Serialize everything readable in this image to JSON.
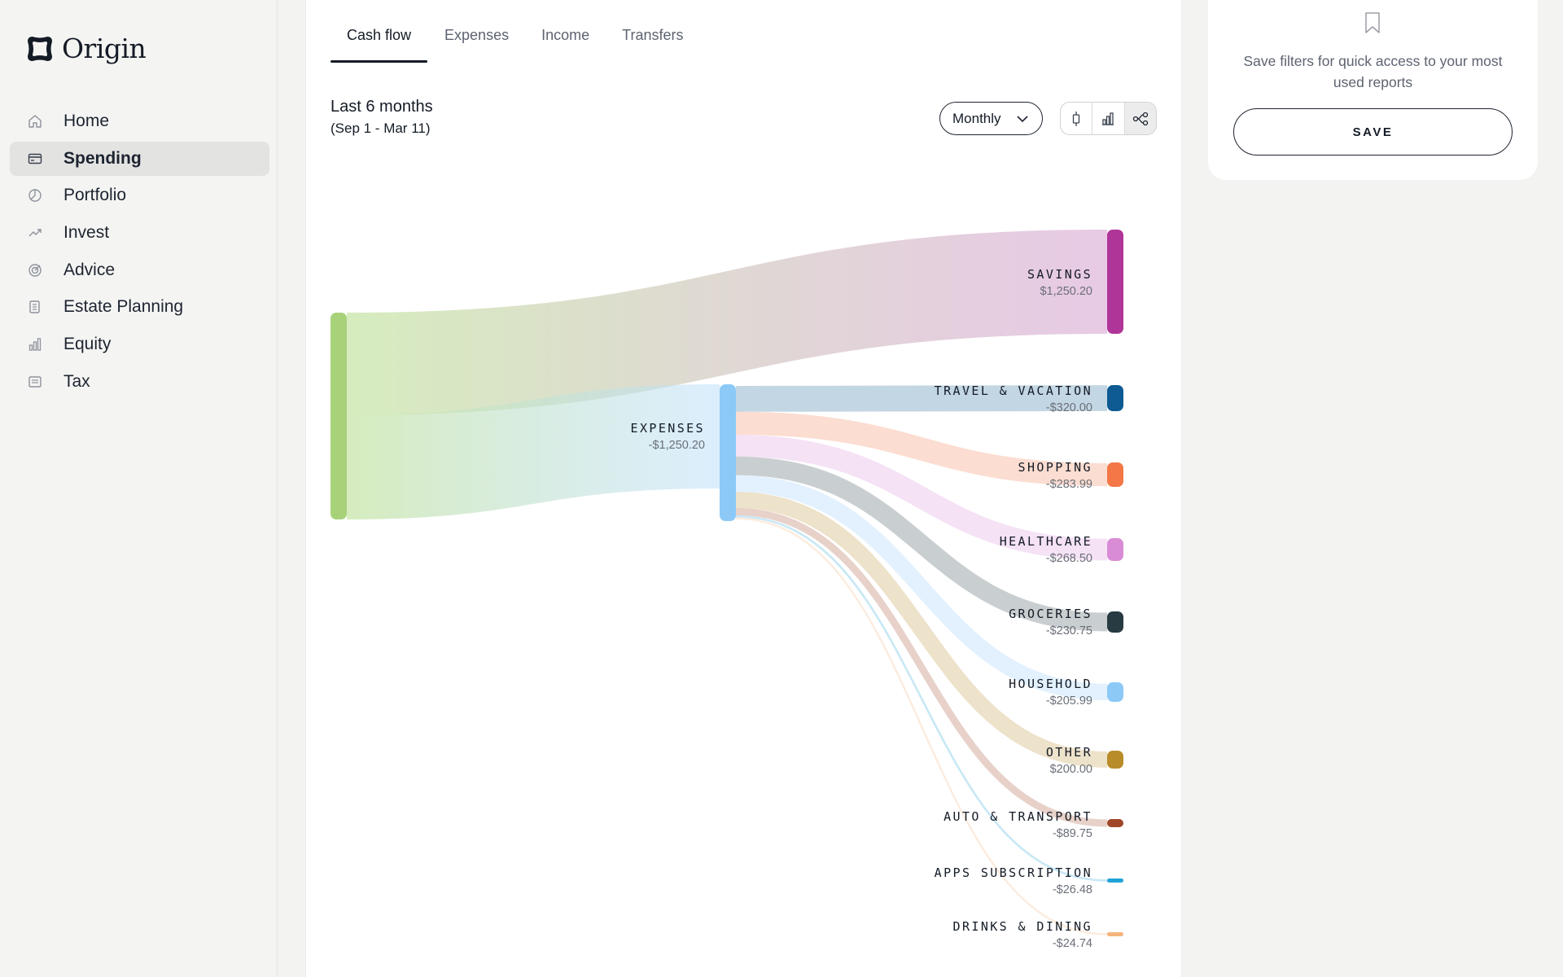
{
  "brand": {
    "name": "Origin"
  },
  "sidebar": {
    "items": [
      {
        "label": "Home",
        "icon": "home-icon"
      },
      {
        "label": "Spending",
        "icon": "card-icon",
        "active": true
      },
      {
        "label": "Portfolio",
        "icon": "pie-icon"
      },
      {
        "label": "Invest",
        "icon": "trend-icon"
      },
      {
        "label": "Advice",
        "icon": "target-icon"
      },
      {
        "label": "Estate Planning",
        "icon": "scroll-icon"
      },
      {
        "label": "Equity",
        "icon": "bar-chart-icon"
      },
      {
        "label": "Tax",
        "icon": "receipt-icon"
      }
    ]
  },
  "tabs": [
    {
      "label": "Cash flow",
      "active": true
    },
    {
      "label": "Expenses"
    },
    {
      "label": "Income"
    },
    {
      "label": "Transfers"
    }
  ],
  "period": {
    "title": "Last 6 months",
    "range": "(Sep 1 - Mar 11)"
  },
  "controls": {
    "frequency": "Monthly",
    "views": [
      "column-view-icon",
      "bar-view-icon",
      "sankey-view-icon"
    ],
    "active_view": "sankey-view-icon"
  },
  "save_panel": {
    "text": "Save filters for quick access to your most used reports",
    "button": "SAVE"
  },
  "chart_data": {
    "type": "sankey",
    "nodes": [
      {
        "id": "income",
        "label": "",
        "value": "",
        "color": "#a8d27a"
      },
      {
        "id": "expenses",
        "label": "EXPENSES",
        "value": "-$1,250.20",
        "color": "#8cc9f7"
      },
      {
        "id": "savings",
        "label": "SAVINGS",
        "value": "$1,250.20",
        "amount": 1250.2,
        "color": "#b03598"
      },
      {
        "id": "travel",
        "label": "TRAVEL & VACATION",
        "value": "-$320.00",
        "amount": 320.0,
        "color": "#0e5a92"
      },
      {
        "id": "shopping",
        "label": "SHOPPING",
        "value": "-$283.99",
        "amount": 283.99,
        "color": "#f37747"
      },
      {
        "id": "healthcare",
        "label": "HEALTHCARE",
        "value": "-$268.50",
        "amount": 268.5,
        "color": "#d98cd6"
      },
      {
        "id": "groceries",
        "label": "GROCERIES",
        "value": "-$230.75",
        "amount": 230.75,
        "color": "#283a42"
      },
      {
        "id": "household",
        "label": "HOUSEHOLD",
        "value": "-$205.99",
        "amount": 205.99,
        "color": "#8cc9f7"
      },
      {
        "id": "other",
        "label": "OTHER",
        "value": "$200.00",
        "amount": 200.0,
        "color": "#b98c2a"
      },
      {
        "id": "auto",
        "label": "AUTO & TRANSPORT",
        "value": "-$89.75",
        "amount": 89.75,
        "color": "#a04628"
      },
      {
        "id": "apps",
        "label": "APPS SUBSCRIPTION",
        "value": "-$26.48",
        "amount": 26.48,
        "color": "#22a3d8"
      },
      {
        "id": "drinks",
        "label": "DRINKS & DINING",
        "value": "-$24.74",
        "amount": 24.74,
        "color": "#f5b37a"
      }
    ]
  }
}
